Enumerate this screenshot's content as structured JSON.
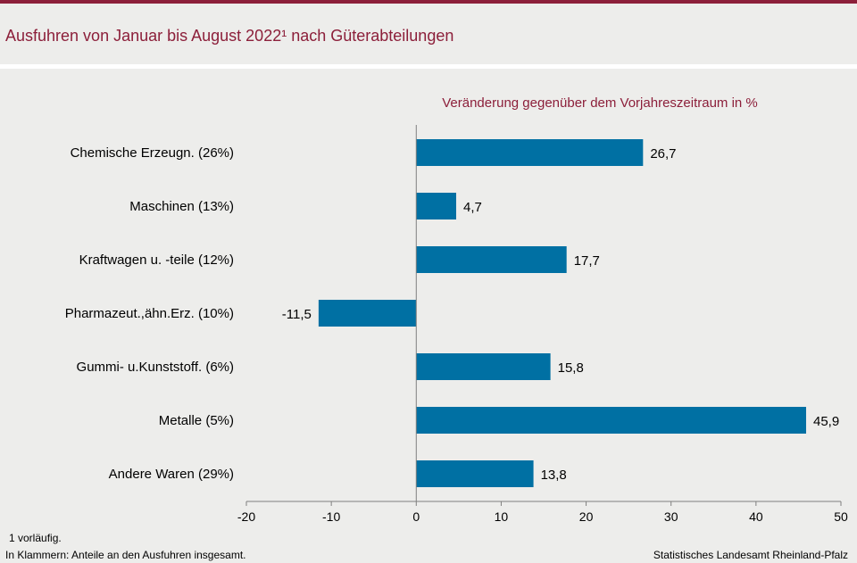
{
  "header": {
    "title": "Ausfuhren von Januar bis August 2022¹ nach Güterabteilungen"
  },
  "footer": {
    "footnote": "1 vorläufig.",
    "note": "In Klammern:  Anteile an den Ausfuhren  insgesamt.",
    "source": "Statistisches Landesamt  Rheinland-Pfalz"
  },
  "colors": {
    "accent": "#8c1f3a",
    "bar": "#0070a3",
    "background": "#ededeb"
  },
  "chart_data": {
    "type": "bar",
    "orientation": "horizontal",
    "title": "Veränderung  gegenüber  dem  Vorjahreszeitraum  in %",
    "categories": [
      "Chemische Erzeugn. (26%)",
      "Maschinen (13%)",
      "Kraftwagen u. -teile (12%)",
      "Pharmazeut.,ähn.Erz. (10%)",
      "Gummi- u.Kunststoff. (6%)",
      "Metalle (5%)",
      "Andere Waren (29%)"
    ],
    "values": [
      26.7,
      4.7,
      17.7,
      -11.5,
      15.8,
      45.9,
      13.8
    ],
    "value_labels": [
      "26,7",
      "4,7",
      "17,7",
      "-11,5",
      "15,8",
      "45,9",
      "13,8"
    ],
    "xlim": [
      -20,
      50
    ],
    "xticks": [
      -20,
      -10,
      0,
      10,
      20,
      30,
      40,
      50
    ],
    "xtick_labels": [
      "-20",
      "-10",
      "0",
      "10",
      "20",
      "30",
      "40",
      "50"
    ],
    "grid": false
  }
}
